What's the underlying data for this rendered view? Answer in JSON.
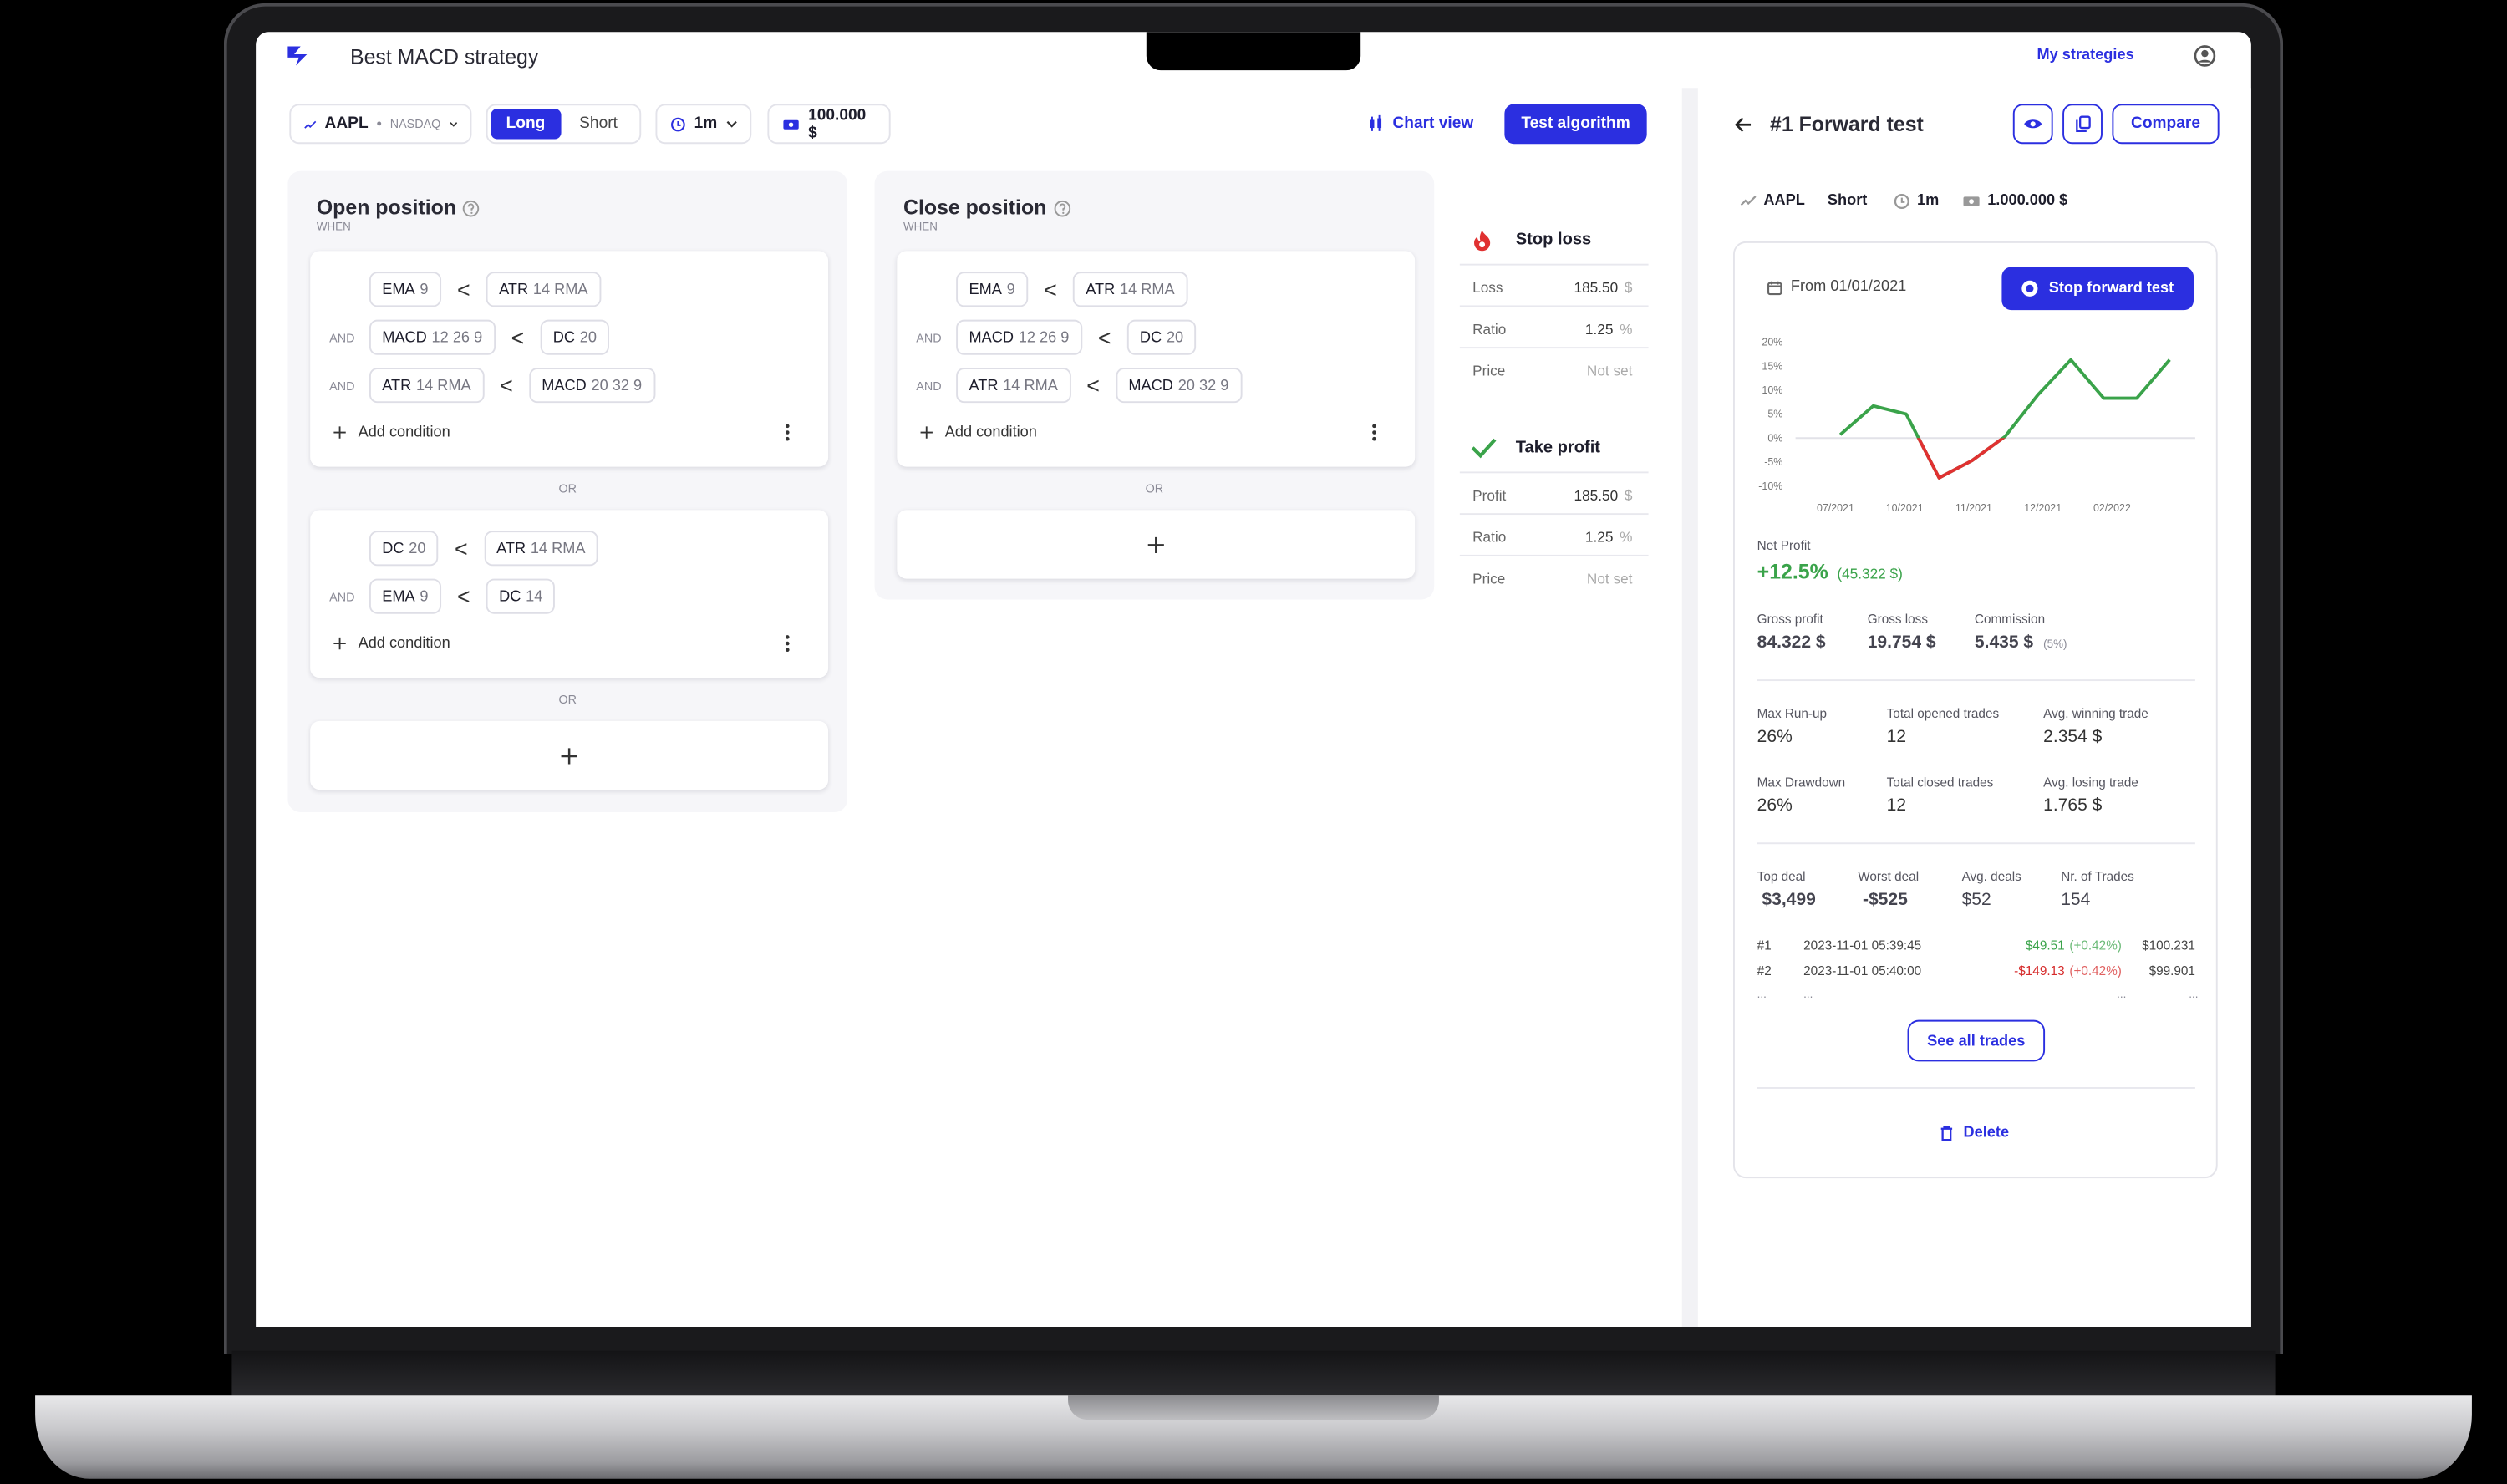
{
  "header": {
    "title": "Best MACD strategy",
    "nav": "My strategies"
  },
  "toolbar": {
    "symbol": "AAPL",
    "exchange": "NASDAQ",
    "sides": [
      "Long",
      "Short"
    ],
    "active_side": 0,
    "interval": "1m",
    "capital": "100.000 $",
    "chart_view": "Chart view",
    "test": "Test algorithm"
  },
  "open_position": {
    "title": "Open position",
    "subtitle": "WHEN",
    "add_condition": "Add condition",
    "or": "OR",
    "groups": [
      [
        {
          "left": [
            "EMA",
            "9"
          ],
          "op": "<",
          "right": [
            "ATR",
            "14 RMA"
          ]
        },
        {
          "join": "AND",
          "left": [
            "MACD",
            "12 26 9"
          ],
          "op": "<",
          "right": [
            "DC",
            "20"
          ]
        },
        {
          "join": "AND",
          "left": [
            "ATR",
            "14 RMA"
          ],
          "op": "<",
          "right": [
            "MACD",
            "20 32 9"
          ]
        }
      ],
      [
        {
          "left": [
            "DC",
            "20"
          ],
          "op": "<",
          "right": [
            "ATR",
            "14 RMA"
          ]
        },
        {
          "join": "AND",
          "left": [
            "EMA",
            "9"
          ],
          "op": "<",
          "right": [
            "DC",
            "14"
          ]
        }
      ]
    ]
  },
  "close_position": {
    "title": "Close position",
    "subtitle": "WHEN",
    "add_condition": "Add condition",
    "or": "OR",
    "groups": [
      [
        {
          "left": [
            "EMA",
            "9"
          ],
          "op": "<",
          "right": [
            "ATR",
            "14 RMA"
          ]
        },
        {
          "join": "AND",
          "left": [
            "MACD",
            "12 26 9"
          ],
          "op": "<",
          "right": [
            "DC",
            "20"
          ]
        },
        {
          "join": "AND",
          "left": [
            "ATR",
            "14 RMA"
          ],
          "op": "<",
          "right": [
            "MACD",
            "20 32 9"
          ]
        }
      ]
    ]
  },
  "stop_loss": {
    "title": "Stop loss",
    "rows": [
      {
        "label": "Loss",
        "value": "185.50",
        "unit": "$"
      },
      {
        "label": "Ratio",
        "value": "1.25",
        "unit": "%"
      },
      {
        "label": "Price",
        "value": "Not set"
      }
    ]
  },
  "take_profit": {
    "title": "Take profit",
    "rows": [
      {
        "label": "Profit",
        "value": "185.50",
        "unit": "$"
      },
      {
        "label": "Ratio",
        "value": "1.25",
        "unit": "%"
      },
      {
        "label": "Price",
        "value": "Not set"
      }
    ]
  },
  "forward_test": {
    "title": "#1 Forward test",
    "compare": "Compare",
    "info": {
      "symbol": "AAPL",
      "side": "Short",
      "interval": "1m",
      "capital": "1.000.000 $"
    },
    "from": "From 01/01/2021",
    "stop": "Stop forward test",
    "chart": {
      "type": "line",
      "x_labels": [
        "07/2021",
        "10/2021",
        "11/2021",
        "12/2021",
        "02/2022"
      ],
      "values": [
        0.7,
        6.7,
        5,
        -8.3,
        -4.7,
        0.3,
        9,
        16.3,
        8.3,
        8.3,
        16.3
      ],
      "color": "#3aa34a",
      "negative_color": "#e03131",
      "ylim": [
        -10,
        20
      ],
      "yticks": [
        {
          "value": 20,
          "label": "20%"
        },
        {
          "value": 15,
          "label": "15%"
        },
        {
          "value": 10,
          "label": "10%"
        },
        {
          "value": 5,
          "label": "5%"
        },
        {
          "value": 0,
          "label": "0%"
        },
        {
          "value": -5,
          "label": "-5%"
        },
        {
          "value": -10,
          "label": "-10%"
        }
      ]
    },
    "net_profit": {
      "label": "Net Profit",
      "value": "+12.5%",
      "amount": "(45.322 $)"
    },
    "summary": [
      {
        "label": "Gross profit",
        "value": "84.322 $"
      },
      {
        "label": "Gross loss",
        "value": "19.754 $"
      },
      {
        "label": "Commission",
        "value": "5.435 $",
        "note": "(5%)"
      }
    ],
    "stats": [
      [
        {
          "label": "Max Run-up",
          "value": "26%"
        },
        {
          "label": "Total opened trades",
          "value": "12"
        },
        {
          "label": "Avg. winning trade",
          "value": "2.354 $"
        }
      ],
      [
        {
          "label": "Max Drawdown",
          "value": "26%"
        },
        {
          "label": "Total closed trades",
          "value": "12"
        },
        {
          "label": "Avg. losing trade",
          "value": "1.765 $"
        }
      ]
    ],
    "deals": [
      {
        "label": "Top deal",
        "value": "$3,499",
        "tone": "positive"
      },
      {
        "label": "Worst deal",
        "value": "-$525",
        "tone": "negative"
      },
      {
        "label": "Avg. deals",
        "value": "$52"
      },
      {
        "label": "Nr. of Trades",
        "value": "154"
      }
    ],
    "trades": [
      {
        "id": "#1",
        "time": "2023-11-01 05:39:45",
        "pnl": "$49.51",
        "pct": "(+0.42%)",
        "balance": "$100.231",
        "tone": "positive"
      },
      {
        "id": "#2",
        "time": "2023-11-01 05:40:00",
        "pnl": "-$149.13",
        "pct": "(+0.42%)",
        "balance": "$99.901",
        "tone": "negative"
      }
    ],
    "ellipsis": "...",
    "see_all": "See all trades",
    "delete": "Delete"
  }
}
